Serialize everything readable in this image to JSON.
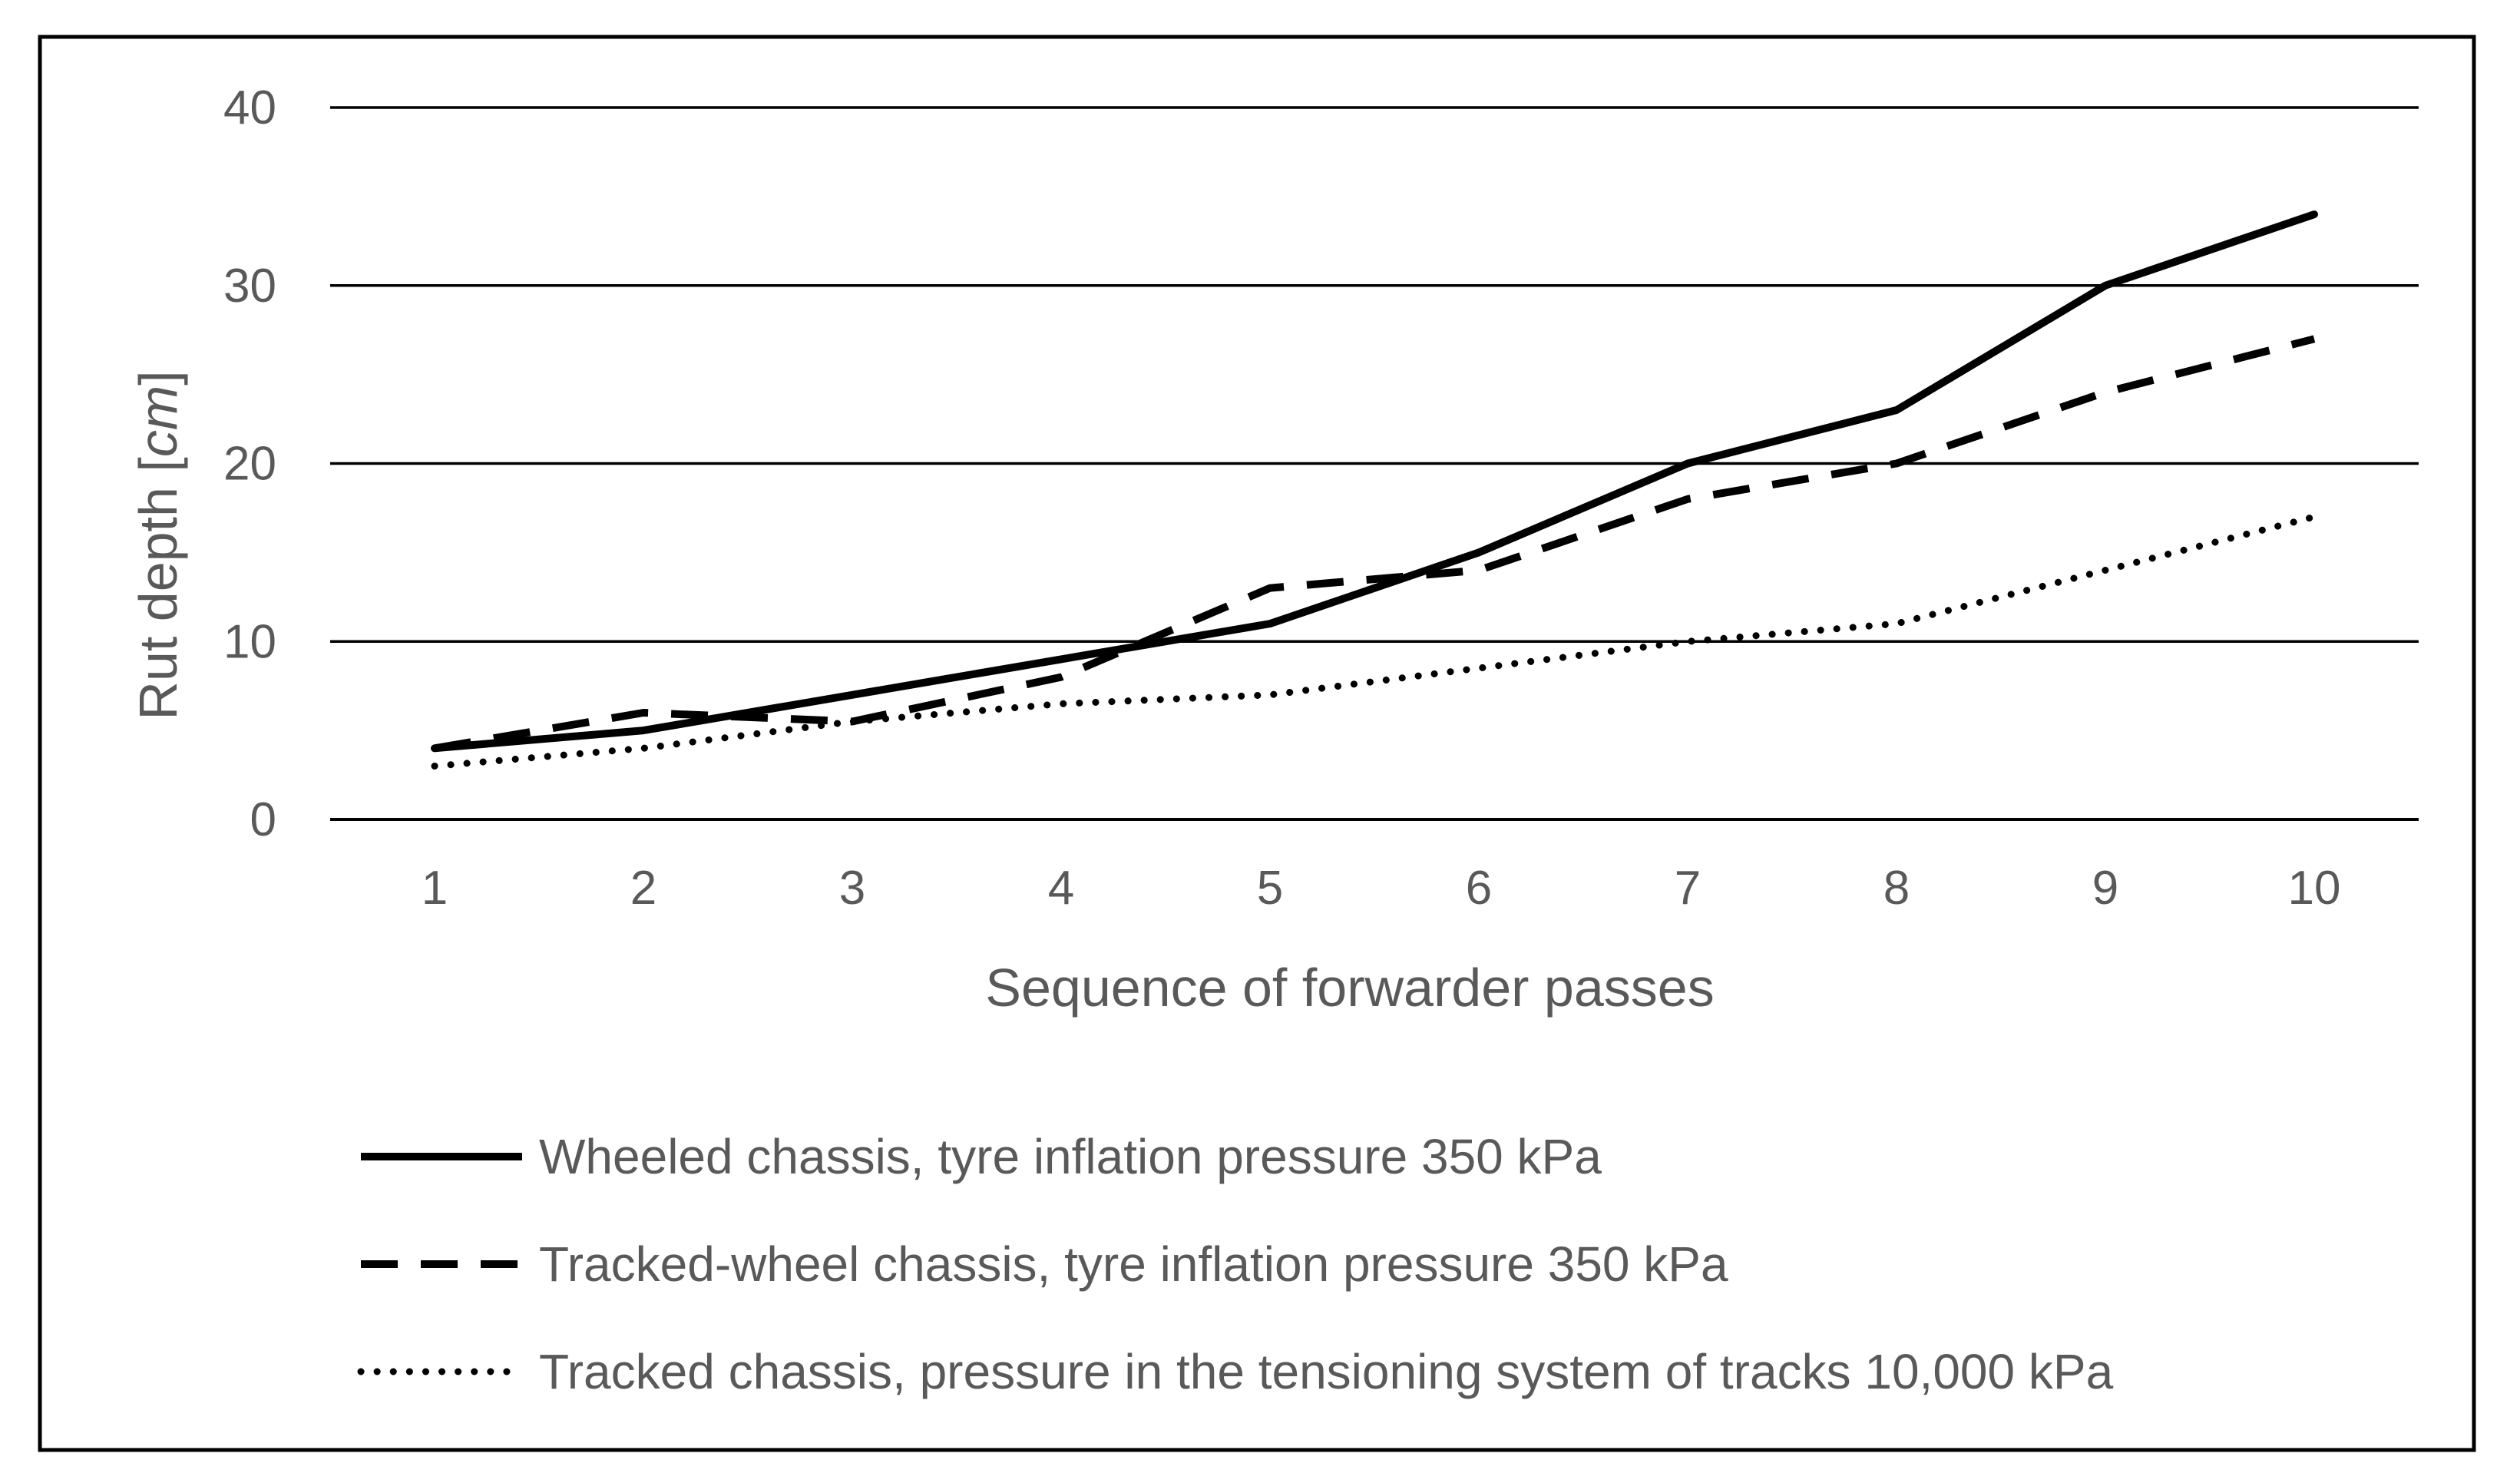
{
  "chart_data": {
    "type": "line",
    "title": "",
    "xlabel": "Sequence of forwarder passes",
    "ylabel_main": "Rut depth [",
    "ylabel_unit": "cm",
    "ylabel_close": "]",
    "x": [
      1,
      2,
      3,
      4,
      5,
      6,
      7,
      8,
      9,
      10
    ],
    "x_tick_labels": [
      "1",
      "2",
      "3",
      "4",
      "5",
      "6",
      "7",
      "8",
      "9",
      "10"
    ],
    "y_ticks": [
      0,
      10,
      20,
      30,
      40
    ],
    "y_tick_labels": [
      "0",
      "10",
      "20",
      "30",
      "40"
    ],
    "ylim": [
      0,
      40
    ],
    "grid": true,
    "legend_position": "bottom",
    "series": [
      {
        "name": "Wheeled chassis, tyre inflation pressure 350 kPa",
        "style": "solid",
        "values": [
          4,
          5,
          7,
          9,
          11,
          15,
          20,
          23,
          30,
          34
        ]
      },
      {
        "name": "Tracked-wheel chassis, tyre inflation pressure 350 kPa",
        "style": "dashed",
        "values": [
          4,
          6,
          5.5,
          8,
          13,
          14,
          18,
          20,
          24,
          27
        ]
      },
      {
        "name": "Tracked chassis, pressure in the tensioning system of tracks 10,000 kPa",
        "style": "dotted",
        "values": [
          3,
          4,
          5.5,
          6.5,
          7,
          8.5,
          10,
          11,
          14,
          17
        ]
      }
    ],
    "colors": {
      "line": "#000000",
      "grid": "#000000",
      "text": "#595959",
      "border": "#000000"
    }
  }
}
